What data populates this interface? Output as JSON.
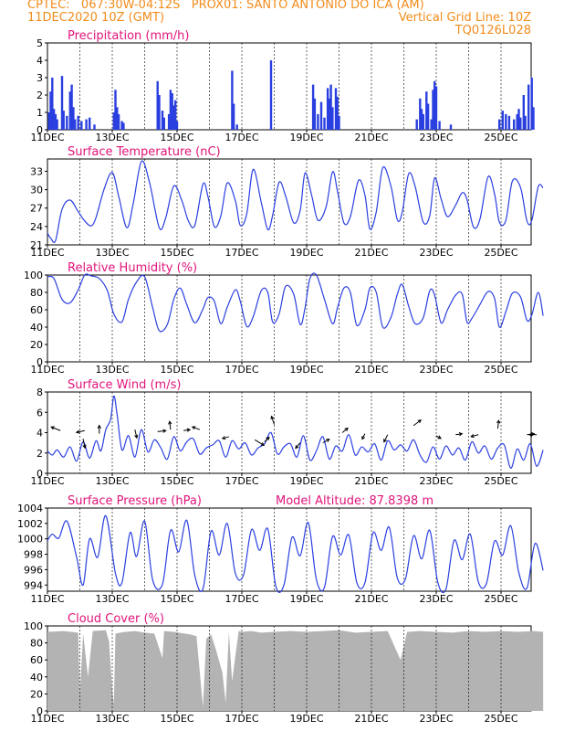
{
  "header": {
    "line1_left": "CPTEC:   067:30W-04:12S   PROX01: SANTO ANTONIO DO ICA (AM)",
    "line2_left": "11DEC2020 10Z (GMT)",
    "line2_right": "Vertical Grid Line: 10Z",
    "line3_right": "TQ0126L028",
    "color": "#f28c1c"
  },
  "colors": {
    "series": "#2a3fe0",
    "title": "#e0147a",
    "cloud": "#b3b3b3",
    "grid": "#000000"
  },
  "date_labels": [
    "11DEC",
    "13DEC",
    "15DEC",
    "17DEC",
    "19DEC",
    "21DEC",
    "23DEC",
    "25DEC"
  ],
  "chart_data": [
    {
      "id": "precip",
      "type": "bar",
      "title": "Precipitation (mm/h)",
      "ylim": [
        0,
        5
      ],
      "yticks": [
        "0",
        "1",
        "2",
        "3",
        "4",
        "5"
      ],
      "x_range_days": [
        0,
        15.3
      ],
      "bars": [
        [
          0.05,
          1.0
        ],
        [
          0.1,
          2.2
        ],
        [
          0.15,
          3.0
        ],
        [
          0.2,
          1.2
        ],
        [
          0.25,
          0.9
        ],
        [
          0.3,
          0.6
        ],
        [
          0.45,
          3.1
        ],
        [
          0.5,
          1.1
        ],
        [
          0.6,
          0.8
        ],
        [
          0.7,
          2.2
        ],
        [
          0.75,
          2.6
        ],
        [
          0.8,
          1.3
        ],
        [
          0.85,
          0.6
        ],
        [
          0.95,
          0.8
        ],
        [
          1.05,
          0.5
        ],
        [
          1.2,
          0.6
        ],
        [
          1.3,
          0.7
        ],
        [
          1.45,
          0.3
        ],
        [
          2.05,
          1.0
        ],
        [
          2.1,
          2.3
        ],
        [
          2.15,
          1.3
        ],
        [
          2.2,
          0.9
        ],
        [
          2.3,
          0.5
        ],
        [
          2.35,
          0.4
        ],
        [
          3.4,
          2.8
        ],
        [
          3.45,
          2.0
        ],
        [
          3.55,
          1.1
        ],
        [
          3.6,
          0.7
        ],
        [
          3.75,
          0.9
        ],
        [
          3.8,
          2.3
        ],
        [
          3.85,
          2.1
        ],
        [
          3.9,
          1.4
        ],
        [
          3.95,
          1.7
        ],
        [
          4.0,
          0.5
        ],
        [
          5.7,
          3.4
        ],
        [
          5.75,
          1.5
        ],
        [
          5.85,
          0.3
        ],
        [
          6.9,
          4.0
        ],
        [
          8.2,
          2.6
        ],
        [
          8.25,
          1.8
        ],
        [
          8.35,
          0.9
        ],
        [
          8.45,
          1.6
        ],
        [
          8.55,
          0.7
        ],
        [
          8.65,
          2.4
        ],
        [
          8.7,
          1.8
        ],
        [
          8.75,
          2.6
        ],
        [
          8.8,
          1.3
        ],
        [
          8.9,
          2.4
        ],
        [
          8.95,
          1.9
        ],
        [
          9.0,
          0.8
        ],
        [
          11.4,
          0.6
        ],
        [
          11.5,
          1.8
        ],
        [
          11.55,
          1.2
        ],
        [
          11.6,
          0.9
        ],
        [
          11.7,
          2.2
        ],
        [
          11.75,
          1.5
        ],
        [
          11.85,
          0.6
        ],
        [
          11.9,
          2.3
        ],
        [
          11.95,
          2.8
        ],
        [
          12.0,
          2.5
        ],
        [
          12.1,
          0.5
        ],
        [
          12.45,
          0.3
        ],
        [
          13.95,
          0.6
        ],
        [
          14.05,
          1.1
        ],
        [
          14.15,
          0.9
        ],
        [
          14.25,
          0.8
        ],
        [
          14.4,
          0.6
        ],
        [
          14.5,
          0.9
        ],
        [
          14.55,
          1.2
        ],
        [
          14.6,
          0.7
        ],
        [
          14.7,
          2.0
        ],
        [
          14.75,
          0.8
        ],
        [
          14.85,
          2.6
        ],
        [
          14.95,
          3.0
        ],
        [
          15.0,
          1.3
        ]
      ]
    },
    {
      "id": "temp",
      "type": "line",
      "title": "Surface Temperature (nC)",
      "ylim": [
        21,
        35
      ],
      "ytick_values": [
        21,
        24,
        27,
        30,
        33
      ],
      "x_range_days": [
        0,
        15.3
      ],
      "x": [
        0,
        0.1,
        0.25,
        0.45,
        0.7,
        0.95,
        1.15,
        1.35,
        1.5,
        1.75,
        2.0,
        2.2,
        2.45,
        2.65,
        2.9,
        3.15,
        3.45,
        3.65,
        3.9,
        4.15,
        4.35,
        4.55,
        4.8,
        4.95,
        5.15,
        5.35,
        5.55,
        5.8,
        5.95,
        6.15,
        6.35,
        6.6,
        6.8,
        6.95,
        7.15,
        7.35,
        7.6,
        7.8,
        7.95,
        8.15,
        8.35,
        8.6,
        8.8,
        8.95,
        9.15,
        9.35,
        9.6,
        9.8,
        9.95,
        10.15,
        10.35,
        10.6,
        10.8,
        10.95,
        11.15,
        11.35,
        11.6,
        11.8,
        11.95,
        12.15,
        12.35,
        12.6,
        12.8,
        12.95,
        13.15,
        13.35,
        13.6,
        13.8,
        13.95,
        14.15,
        14.35,
        14.6,
        14.8,
        14.95,
        15.15,
        15.3
      ],
      "y": [
        22.9,
        22.1,
        21.7,
        26.8,
        28.3,
        26.4,
        24.9,
        24.1,
        25.5,
        30.1,
        32.8,
        28.9,
        23.8,
        27.8,
        34.6,
        31.2,
        23.8,
        25.4,
        30.6,
        28.2,
        24.9,
        24.2,
        30.9,
        29.0,
        24.0,
        25.7,
        31.1,
        28.2,
        24.2,
        26.0,
        33.3,
        27.9,
        23.5,
        25.8,
        31.2,
        29.0,
        24.6,
        26.6,
        32.7,
        29.2,
        25.0,
        27.2,
        32.9,
        29.8,
        24.6,
        25.6,
        31.5,
        29.1,
        23.6,
        26.4,
        33.6,
        30.6,
        25.1,
        26.3,
        32.6,
        30.5,
        24.7,
        25.8,
        31.9,
        28.5,
        25.6,
        27.5,
        29.5,
        28.4,
        23.9,
        25.2,
        32.1,
        29.3,
        24.7,
        25.0,
        31.4,
        30.4,
        24.9,
        25.0,
        30.5,
        30.3
      ]
    },
    {
      "id": "rh",
      "type": "line",
      "title": "Relative Humidity (%)",
      "ylim": [
        0,
        100
      ],
      "ytick_values": [
        0,
        20,
        40,
        60,
        80,
        100
      ],
      "x_range_days": [
        0,
        15.3
      ],
      "x": [
        0,
        0.2,
        0.45,
        0.7,
        0.95,
        1.15,
        1.35,
        1.6,
        1.85,
        2.05,
        2.3,
        2.5,
        2.75,
        3.0,
        3.25,
        3.45,
        3.7,
        3.9,
        4.1,
        4.3,
        4.55,
        4.8,
        4.95,
        5.15,
        5.35,
        5.55,
        5.8,
        5.95,
        6.15,
        6.35,
        6.6,
        6.8,
        6.95,
        7.15,
        7.35,
        7.6,
        7.8,
        7.95,
        8.1,
        8.3,
        8.55,
        8.8,
        8.95,
        9.15,
        9.35,
        9.55,
        9.8,
        9.95,
        10.15,
        10.35,
        10.6,
        10.8,
        10.95,
        11.15,
        11.35,
        11.6,
        11.8,
        11.95,
        12.15,
        12.35,
        12.6,
        12.8,
        12.95,
        13.1,
        13.35,
        13.6,
        13.8,
        13.95,
        14.15,
        14.35,
        14.6,
        14.8,
        14.95,
        15.15,
        15.3
      ],
      "y": [
        98,
        96,
        72,
        68,
        83,
        100,
        99,
        96,
        82,
        55,
        46,
        72,
        92,
        98,
        62,
        36,
        43,
        72,
        85,
        66,
        45,
        61,
        74,
        70,
        44,
        63,
        83,
        70,
        41,
        52,
        82,
        80,
        46,
        55,
        87,
        78,
        43,
        62,
        96,
        100,
        72,
        44,
        62,
        85,
        80,
        42,
        60,
        85,
        80,
        40,
        51,
        78,
        89,
        64,
        44,
        51,
        82,
        77,
        45,
        60,
        77,
        78,
        46,
        50,
        66,
        81,
        73,
        40,
        58,
        79,
        75,
        48,
        54,
        80,
        53
      ]
    },
    {
      "id": "wind",
      "type": "line",
      "title": "Surface Wind (m/s)",
      "ylim": [
        0,
        8
      ],
      "ytick_values": [
        0,
        2,
        4,
        6,
        8
      ],
      "x_range_days": [
        0,
        15.3
      ],
      "x": [
        0,
        0.15,
        0.3,
        0.5,
        0.7,
        0.9,
        1.1,
        1.3,
        1.5,
        1.65,
        1.8,
        1.95,
        2.05,
        2.15,
        2.3,
        2.5,
        2.7,
        2.9,
        3.1,
        3.3,
        3.5,
        3.7,
        3.9,
        4.1,
        4.3,
        4.5,
        4.7,
        4.9,
        5.1,
        5.3,
        5.5,
        5.7,
        5.9,
        6.1,
        6.3,
        6.5,
        6.7,
        6.9,
        7.1,
        7.3,
        7.5,
        7.7,
        7.9,
        8.1,
        8.3,
        8.5,
        8.7,
        8.9,
        9.1,
        9.3,
        9.5,
        9.7,
        9.9,
        10.1,
        10.3,
        10.5,
        10.7,
        10.9,
        11.1,
        11.3,
        11.5,
        11.7,
        11.9,
        12.1,
        12.3,
        12.5,
        12.7,
        12.9,
        13.1,
        13.3,
        13.5,
        13.7,
        13.9,
        14.1,
        14.3,
        14.5,
        14.7,
        14.9,
        15.1,
        15.3
      ],
      "y": [
        2.2,
        1.8,
        2.3,
        1.6,
        2.6,
        1.2,
        3.1,
        1.5,
        3.2,
        2.2,
        4.3,
        5.3,
        7.6,
        5.8,
        2.3,
        3.7,
        1.6,
        4.3,
        2.1,
        3.3,
        2.5,
        1.4,
        3.6,
        2.2,
        3.1,
        3.4,
        1.9,
        2.5,
        2.8,
        3.2,
        1.6,
        3.2,
        2.4,
        3.0,
        1.8,
        2.5,
        2.9,
        4.0,
        1.9,
        2.6,
        2.9,
        1.6,
        3.7,
        1.3,
        2.2,
        3.6,
        1.4,
        2.7,
        2.2,
        3.8,
        1.8,
        2.6,
        2.1,
        2.9,
        1.3,
        3.2,
        2.3,
        2.8,
        2.2,
        3.3,
        1.8,
        1.1,
        2.6,
        1.4,
        2.7,
        1.8,
        2.5,
        1.3,
        3.1,
        2.0,
        2.7,
        1.4,
        2.5,
        2.8,
        0.5,
        2.4,
        1.3,
        2.9,
        0.7,
        2.3
      ],
      "arrows": [
        [
          0.4,
          4.2,
          -10,
          -4
        ],
        [
          1.15,
          4.2,
          -9,
          2
        ],
        [
          1.1,
          3.4,
          2,
          10
        ],
        [
          1.6,
          3.9,
          0,
          -9
        ],
        [
          2.7,
          4.3,
          2,
          9
        ],
        [
          3.4,
          4.1,
          9,
          -1
        ],
        [
          3.8,
          4.3,
          -1,
          -9
        ],
        [
          4.2,
          4.2,
          7,
          -1
        ],
        [
          4.7,
          4.3,
          -8,
          -3
        ],
        [
          5.6,
          3.6,
          -7,
          2
        ],
        [
          6.4,
          3.3,
          10,
          6
        ],
        [
          6.7,
          3.1,
          5,
          -5
        ],
        [
          7.0,
          4.8,
          -3,
          -9
        ],
        [
          7.8,
          3.0,
          -5,
          6
        ],
        [
          8.5,
          3.0,
          7,
          -4
        ],
        [
          9.1,
          4.0,
          6,
          -5
        ],
        [
          9.8,
          3.9,
          -3,
          6
        ],
        [
          10.5,
          3.8,
          -4,
          8
        ],
        [
          11.3,
          4.7,
          8,
          -6
        ],
        [
          12.0,
          3.7,
          5,
          3
        ],
        [
          12.6,
          3.8,
          7,
          -1
        ],
        [
          13.3,
          3.8,
          -8,
          2
        ],
        [
          13.9,
          4.4,
          1,
          -9
        ],
        [
          14.8,
          3.8,
          8,
          -1
        ],
        [
          15.1,
          3.8,
          -8,
          0
        ]
      ]
    },
    {
      "id": "pressure",
      "type": "line",
      "title": "Surface Pressure (hPa)",
      "subtitle": "Model Altitude: 87.8398 m",
      "ylim": [
        993.2,
        1004
      ],
      "ytick_values": [
        994,
        996,
        998,
        1000,
        1002,
        1004
      ],
      "x_range_days": [
        0,
        15.3
      ],
      "x": [
        0,
        0.15,
        0.35,
        0.6,
        0.9,
        1.1,
        1.3,
        1.55,
        1.8,
        2.1,
        2.3,
        2.55,
        2.75,
        3.0,
        3.25,
        3.55,
        3.8,
        4.05,
        4.3,
        4.55,
        4.8,
        5.05,
        5.3,
        5.55,
        5.8,
        6.05,
        6.3,
        6.55,
        6.8,
        7.05,
        7.3,
        7.55,
        7.8,
        8.05,
        8.3,
        8.55,
        8.8,
        9.05,
        9.3,
        9.55,
        9.8,
        10.05,
        10.3,
        10.55,
        10.8,
        11.05,
        11.3,
        11.55,
        11.8,
        12.05,
        12.3,
        12.55,
        12.8,
        13.05,
        13.3,
        13.55,
        13.8,
        14.05,
        14.3,
        14.55,
        14.8,
        15.05,
        15.3
      ],
      "y": [
        999.8,
        1000.6,
        1000.1,
        1002.3,
        997.6,
        994.0,
        1000.0,
        997.6,
        1003.0,
        995.5,
        994.3,
        1000.8,
        997.7,
        1002.3,
        994.6,
        994.1,
        1001.1,
        998.3,
        1002.4,
        995.2,
        993.5,
        1001.0,
        997.9,
        1002.0,
        995.5,
        995.3,
        1001.2,
        998.5,
        1001.3,
        993.8,
        994.0,
        1000.2,
        997.8,
        1002.1,
        994.7,
        993.7,
        1000.3,
        997.9,
        1000.5,
        994.3,
        994.3,
        1000.8,
        998.5,
        1001.5,
        994.9,
        994.8,
        1000.4,
        997.4,
        1001.1,
        994.3,
        993.5,
        999.8,
        997.3,
        1000.6,
        994.4,
        994.2,
        999.7,
        997.9,
        1001.7,
        995.6,
        993.6,
        999.4,
        995.9
      ]
    },
    {
      "id": "cloud",
      "type": "area",
      "title": "Cloud Cover (%)",
      "ylim": [
        0,
        100
      ],
      "ytick_values": [
        0,
        20,
        40,
        60,
        80,
        100
      ],
      "x_range_days": [
        0,
        15.3
      ],
      "x": [
        0,
        0.5,
        0.95,
        1.0,
        1.1,
        1.25,
        1.4,
        1.8,
        1.9,
        2.0,
        2.05,
        2.1,
        2.4,
        2.7,
        3.0,
        3.3,
        3.55,
        3.6,
        3.9,
        4.4,
        4.6,
        4.8,
        4.9,
        5.05,
        5.2,
        5.4,
        5.5,
        5.6,
        5.7,
        5.9,
        6.0,
        6.3,
        6.6,
        7.0,
        7.5,
        8.0,
        8.5,
        9.0,
        9.5,
        10.0,
        10.5,
        10.9,
        11.1,
        11.5,
        12.0,
        12.5,
        13.0,
        13.5,
        14.0,
        14.5,
        15.0,
        15.3
      ],
      "y": [
        93,
        94,
        92,
        20,
        91,
        40,
        94,
        95,
        82,
        25,
        8,
        91,
        93,
        94,
        92,
        91,
        62,
        94,
        93,
        90,
        88,
        5,
        85,
        90,
        72,
        45,
        10,
        93,
        35,
        94,
        93,
        94,
        92,
        93,
        94,
        93,
        94,
        95,
        92,
        93,
        94,
        60,
        93,
        94,
        93,
        92,
        94,
        93,
        94,
        93,
        94,
        93
      ]
    }
  ]
}
